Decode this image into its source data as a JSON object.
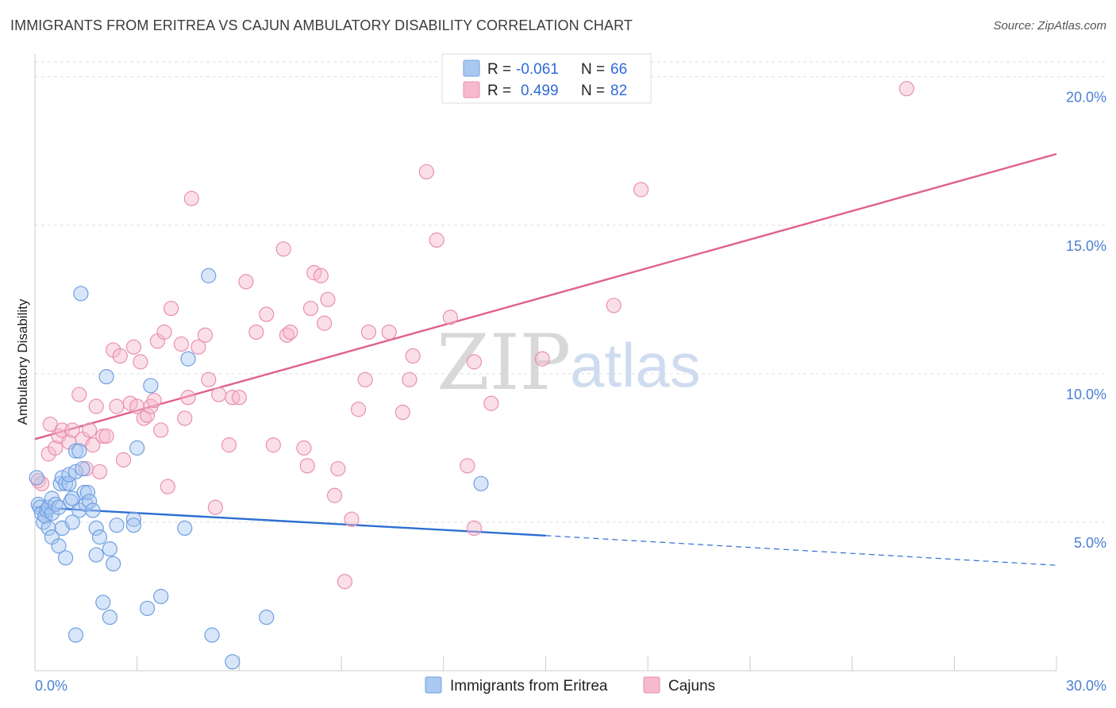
{
  "title": "IMMIGRANTS FROM ERITREA VS CAJUN AMBULATORY DISABILITY CORRELATION CHART",
  "source": "Source: ZipAtlas.com",
  "watermark": {
    "zip": "ZIP",
    "atlas": "atlas"
  },
  "legend": {
    "r_label": "R =",
    "n_label": "N =",
    "entries": [
      {
        "r": "-0.061",
        "n": "66"
      },
      {
        "r": "0.499",
        "n": "82"
      }
    ]
  },
  "colors": {
    "blue": "#2e6fd2",
    "blue_fill": "#a9c8f2",
    "pink": "#e0608f",
    "pink_fill": "#f6b9cd",
    "grid": "#dddddd",
    "tick_text": "#4a7fd0"
  },
  "chart_data": {
    "type": "scatter",
    "ylabel": "Ambulatory Disability",
    "xlim": [
      0,
      30
    ],
    "ylim": [
      0,
      20.5
    ],
    "x_tick_labels": [
      "0.0%",
      "30.0%"
    ],
    "y_ticks": [
      5,
      10,
      15,
      20
    ],
    "y_tick_labels": [
      "5.0%",
      "10.0%",
      "15.0%",
      "20.0%"
    ],
    "grid": "horizontal dashed",
    "legend_position": "top-center",
    "series": [
      {
        "name": "Immigrants from Eritrea",
        "color": "#2e6fd2",
        "trend": {
          "x": [
            0,
            15
          ],
          "y": [
            5.5,
            4.55
          ],
          "dashed_to": [
            30,
            3.55
          ]
        },
        "points": [
          [
            0.05,
            6.5
          ],
          [
            0.1,
            5.6
          ],
          [
            0.15,
            5.5
          ],
          [
            0.2,
            5.3
          ],
          [
            0.25,
            5.0
          ],
          [
            0.3,
            5.2
          ],
          [
            0.35,
            5.4
          ],
          [
            0.4,
            5.5
          ],
          [
            0.4,
            4.8
          ],
          [
            0.5,
            5.3
          ],
          [
            0.5,
            5.8
          ],
          [
            0.5,
            4.5
          ],
          [
            0.6,
            5.6
          ],
          [
            0.7,
            5.5
          ],
          [
            0.7,
            4.2
          ],
          [
            0.75,
            6.3
          ],
          [
            0.8,
            6.5
          ],
          [
            0.8,
            4.8
          ],
          [
            0.9,
            6.3
          ],
          [
            0.9,
            3.8
          ],
          [
            1.0,
            6.3
          ],
          [
            1.0,
            6.6
          ],
          [
            1.05,
            5.7
          ],
          [
            1.1,
            5.8
          ],
          [
            1.1,
            5.0
          ],
          [
            1.2,
            7.4
          ],
          [
            1.2,
            6.7
          ],
          [
            1.2,
            1.2
          ],
          [
            1.3,
            7.4
          ],
          [
            1.3,
            5.4
          ],
          [
            1.35,
            12.7
          ],
          [
            1.4,
            6.8
          ],
          [
            1.45,
            6.0
          ],
          [
            1.5,
            5.6
          ],
          [
            1.55,
            6.0
          ],
          [
            1.6,
            5.7
          ],
          [
            1.7,
            5.4
          ],
          [
            1.8,
            4.8
          ],
          [
            1.9,
            4.5
          ],
          [
            1.8,
            3.9
          ],
          [
            2.0,
            2.3
          ],
          [
            2.1,
            9.9
          ],
          [
            2.2,
            4.1
          ],
          [
            2.2,
            1.8
          ],
          [
            2.3,
            3.6
          ],
          [
            2.4,
            4.9
          ],
          [
            2.9,
            5.1
          ],
          [
            2.9,
            4.9
          ],
          [
            3.0,
            7.5
          ],
          [
            3.3,
            2.1
          ],
          [
            3.4,
            9.6
          ],
          [
            3.7,
            2.5
          ],
          [
            4.4,
            4.8
          ],
          [
            4.5,
            10.5
          ],
          [
            5.1,
            13.3
          ],
          [
            5.2,
            1.2
          ],
          [
            5.8,
            0.3
          ],
          [
            6.8,
            1.8
          ],
          [
            13.1,
            6.3
          ]
        ]
      },
      {
        "name": "Cajuns",
        "color": "#e0608f",
        "trend": {
          "x": [
            0,
            30
          ],
          "y": [
            7.8,
            17.4
          ]
        },
        "points": [
          [
            0.1,
            6.4
          ],
          [
            0.2,
            6.3
          ],
          [
            0.4,
            7.3
          ],
          [
            0.45,
            8.3
          ],
          [
            0.6,
            7.5
          ],
          [
            0.7,
            7.9
          ],
          [
            0.8,
            8.1
          ],
          [
            1.0,
            7.7
          ],
          [
            1.1,
            8.1
          ],
          [
            1.3,
            9.3
          ],
          [
            1.4,
            7.8
          ],
          [
            1.5,
            6.8
          ],
          [
            1.6,
            8.1
          ],
          [
            1.7,
            7.6
          ],
          [
            1.8,
            8.9
          ],
          [
            1.9,
            6.7
          ],
          [
            2.0,
            7.9
          ],
          [
            2.1,
            7.9
          ],
          [
            2.3,
            10.8
          ],
          [
            2.4,
            8.9
          ],
          [
            2.5,
            10.6
          ],
          [
            2.6,
            7.1
          ],
          [
            2.8,
            9.0
          ],
          [
            2.9,
            10.9
          ],
          [
            3.0,
            8.9
          ],
          [
            3.1,
            10.4
          ],
          [
            3.2,
            8.5
          ],
          [
            3.3,
            8.6
          ],
          [
            3.4,
            8.9
          ],
          [
            3.5,
            9.1
          ],
          [
            3.6,
            11.1
          ],
          [
            3.7,
            8.1
          ],
          [
            3.8,
            11.4
          ],
          [
            3.9,
            6.2
          ],
          [
            4.0,
            12.2
          ],
          [
            4.3,
            11.0
          ],
          [
            4.4,
            8.5
          ],
          [
            4.5,
            9.2
          ],
          [
            4.6,
            15.9
          ],
          [
            4.8,
            10.9
          ],
          [
            5.0,
            11.3
          ],
          [
            5.1,
            9.8
          ],
          [
            5.3,
            5.5
          ],
          [
            5.4,
            9.3
          ],
          [
            5.7,
            7.6
          ],
          [
            5.8,
            9.2
          ],
          [
            6.0,
            9.2
          ],
          [
            6.2,
            13.1
          ],
          [
            6.5,
            11.4
          ],
          [
            6.8,
            12.0
          ],
          [
            7.0,
            7.6
          ],
          [
            7.3,
            14.2
          ],
          [
            7.4,
            11.3
          ],
          [
            7.5,
            11.4
          ],
          [
            7.9,
            7.5
          ],
          [
            8.0,
            6.9
          ],
          [
            8.1,
            12.2
          ],
          [
            8.2,
            13.4
          ],
          [
            8.4,
            13.3
          ],
          [
            8.5,
            11.7
          ],
          [
            8.6,
            12.5
          ],
          [
            8.8,
            5.9
          ],
          [
            8.9,
            6.8
          ],
          [
            9.1,
            3.0
          ],
          [
            9.3,
            5.1
          ],
          [
            9.5,
            8.8
          ],
          [
            9.7,
            9.8
          ],
          [
            9.8,
            11.4
          ],
          [
            10.4,
            11.4
          ],
          [
            10.8,
            8.7
          ],
          [
            11.0,
            9.8
          ],
          [
            11.1,
            10.6
          ],
          [
            11.5,
            16.8
          ],
          [
            11.8,
            14.5
          ],
          [
            12.2,
            11.9
          ],
          [
            12.7,
            6.9
          ],
          [
            12.9,
            4.8
          ],
          [
            12.9,
            10.4
          ],
          [
            13.4,
            9.0
          ],
          [
            14.9,
            10.5
          ],
          [
            17.0,
            12.3
          ],
          [
            17.8,
            16.2
          ],
          [
            25.6,
            19.6
          ]
        ]
      }
    ]
  },
  "bottom_legend": [
    "Immigrants from Eritrea",
    "Cajuns"
  ]
}
